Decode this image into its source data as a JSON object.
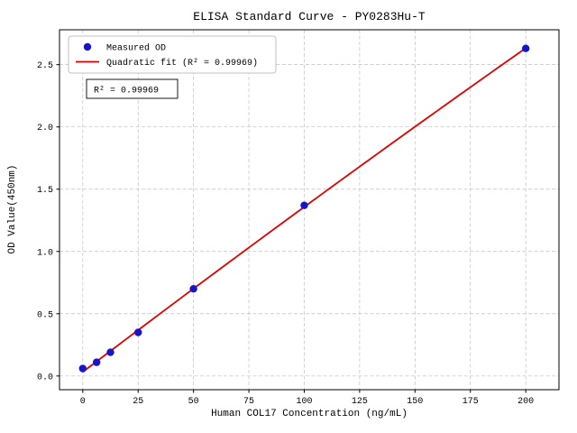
{
  "chart_data": {
    "type": "scatter",
    "title": "ELISA Standard Curve - PY0283Hu-T",
    "xlabel": "Human COL17 Concentration (ng/mL)",
    "ylabel": "OD Value(450nm)",
    "xlim": [
      -10.5,
      215
    ],
    "ylim": [
      -0.11,
      2.78
    ],
    "x_ticks": [
      0,
      25,
      50,
      75,
      100,
      125,
      150,
      175,
      200
    ],
    "y_ticks": [
      0.0,
      0.5,
      1.0,
      1.5,
      2.0,
      2.5
    ],
    "grid": true,
    "legend_position": "upper left",
    "series": [
      {
        "name": "Measured OD",
        "type": "scatter",
        "color": "#1515cc",
        "x": [
          0,
          6.25,
          12.5,
          25,
          50,
          100,
          200
        ],
        "y": [
          0.06,
          0.11,
          0.19,
          0.35,
          0.7,
          1.37,
          2.63
        ]
      },
      {
        "name": "Quadratic fit (R² = 0.99969)",
        "type": "line",
        "fit": "quadratic",
        "color": "#e00000"
      }
    ],
    "annotation": "R² = 0.99969",
    "r_squared": "0.99969"
  },
  "colors": {
    "grid": "#bfbfbf",
    "axis": "#000000",
    "background": "#ffffff"
  }
}
